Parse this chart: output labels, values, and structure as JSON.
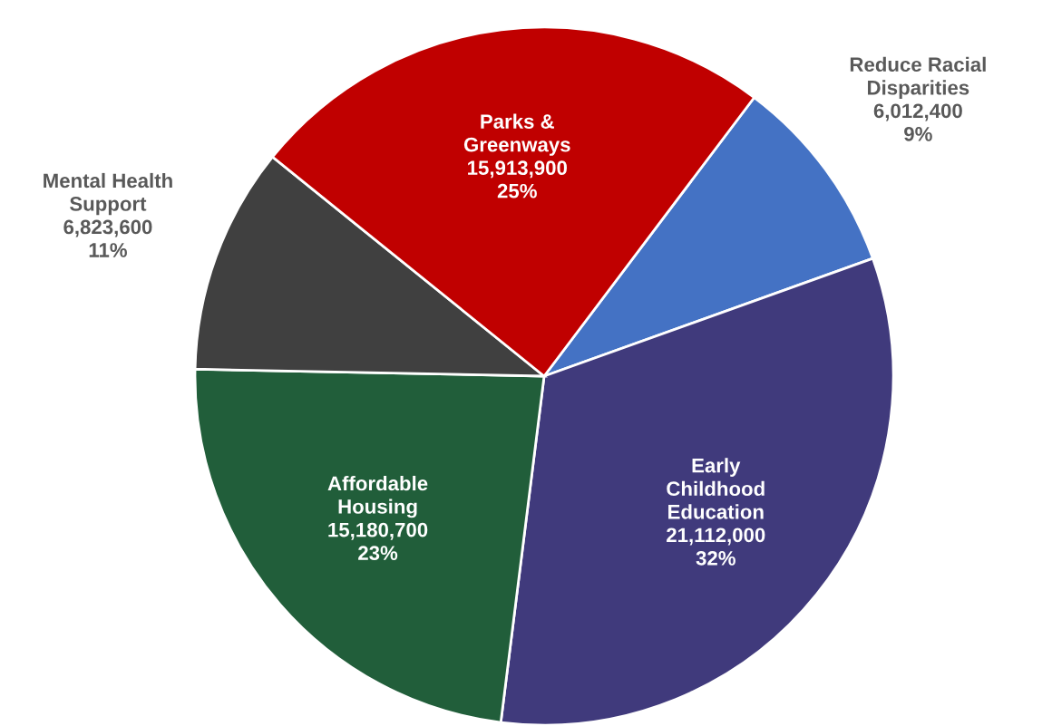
{
  "chart_data": {
    "type": "pie",
    "categories": [
      "Reduce Racial\nDisparities",
      "Early\nChildhood\nEducation",
      "Affordable\nHousing",
      "Mental Health\nSupport",
      "Parks &\nGreenways"
    ],
    "values": [
      6012400,
      21112000,
      15180700,
      6823600,
      15913900
    ],
    "value_labels": [
      "6,012,400\n9%",
      "21,112,000\n32%",
      "15,180,700\n23%",
      "6,823,600\n11%",
      "15,913,900\n25%"
    ],
    "colors": [
      "#4472c4",
      "#403a7c",
      "#215e3a",
      "#404040",
      "#c00000"
    ],
    "legend": false
  }
}
